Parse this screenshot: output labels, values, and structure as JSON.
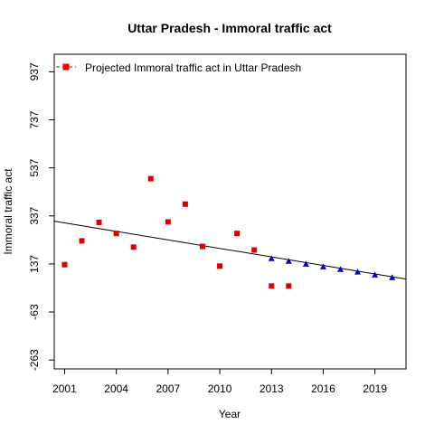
{
  "chart_data": {
    "type": "scatter",
    "title": "Uttar Pradesh  -  Immoral traffic act",
    "xlabel": "Year",
    "ylabel": "Immoral traffic act",
    "xlim": [
      2000.4,
      2020.8
    ],
    "ylim": [
      -300,
      1010
    ],
    "x_ticks": [
      "2001",
      "2004",
      "2007",
      "2010",
      "2013",
      "2016",
      "2019"
    ],
    "y_ticks": [
      "-263",
      "-63",
      "137",
      "337",
      "537",
      "737",
      "937"
    ],
    "legend": {
      "position": "top-left",
      "entries": [
        {
          "label": "Projected  Immoral traffic act  in  Uttar Pradesh",
          "color": "#ff0000",
          "marker": "square",
          "line": "dashed"
        }
      ]
    },
    "series": [
      {
        "name": "Projected  Immoral traffic act  in  Uttar Pradesh",
        "marker": "square",
        "color": "#dd0000",
        "points": [
          {
            "x": 2001,
            "y": 134
          },
          {
            "x": 2002,
            "y": 233
          },
          {
            "x": 2003,
            "y": 310
          },
          {
            "x": 2004,
            "y": 264
          },
          {
            "x": 2005,
            "y": 207
          },
          {
            "x": 2006,
            "y": 492
          },
          {
            "x": 2007,
            "y": 312
          },
          {
            "x": 2008,
            "y": 386
          },
          {
            "x": 2009,
            "y": 210
          },
          {
            "x": 2010,
            "y": 128
          },
          {
            "x": 2011,
            "y": 264
          },
          {
            "x": 2012,
            "y": 195
          },
          {
            "x": 2013,
            "y": 45
          },
          {
            "x": 2014,
            "y": 45
          }
        ]
      },
      {
        "marker": "triangle",
        "color": "#0000cc",
        "points": [
          {
            "x": 2013,
            "y": 160
          },
          {
            "x": 2014,
            "y": 149
          },
          {
            "x": 2015,
            "y": 137
          },
          {
            "x": 2016,
            "y": 126
          },
          {
            "x": 2017,
            "y": 115
          },
          {
            "x": 2018,
            "y": 104
          },
          {
            "x": 2019,
            "y": 92
          },
          {
            "x": 2020,
            "y": 81
          }
        ]
      }
    ],
    "trend_line": {
      "x": [
        2000.4,
        2020.8
      ],
      "y": [
        315,
        74
      ],
      "color": "#000000"
    },
    "grid": false
  }
}
